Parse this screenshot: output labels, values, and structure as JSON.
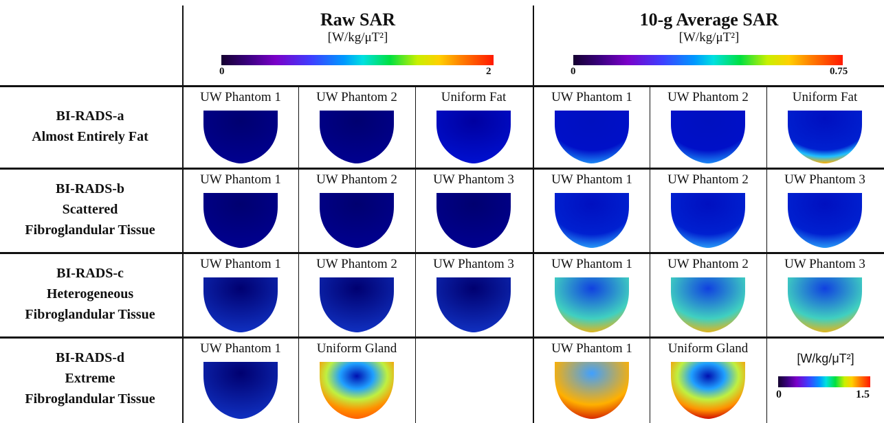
{
  "header": {
    "raw": {
      "title": "Raw SAR",
      "unit": "[W/kg/μT²]",
      "min": "0",
      "max": "2"
    },
    "avg": {
      "title": "10-g Average SAR",
      "unit": "[W/kg/μT²]",
      "min": "0",
      "max": "0.75"
    }
  },
  "rows": [
    {
      "line1": "BI-RADS-a",
      "line2": "Almost Entirely Fat",
      "line3": ""
    },
    {
      "line1": "BI-RADS-b",
      "line2": "Scattered",
      "line3": "Fibroglandular Tissue"
    },
    {
      "line1": "BI-RADS-c",
      "line2": "Heterogeneous",
      "line3": "Fibroglandular Tissue"
    },
    {
      "line1": "BI-RADS-d",
      "line2": "Extreme",
      "line3": "Fibroglandular Tissue"
    }
  ],
  "cells": [
    [
      "UW Phantom 1",
      "UW Phantom 2",
      "Uniform Fat",
      "UW Phantom 1",
      "UW Phantom 2",
      "Uniform Fat"
    ],
    [
      "UW Phantom 1",
      "UW Phantom 2",
      "UW Phantom 3",
      "UW Phantom 1",
      "UW Phantom 2",
      "UW Phantom 3"
    ],
    [
      "UW Phantom 1",
      "UW Phantom 2",
      "UW Phantom 3",
      "UW Phantom 1",
      "UW Phantom 2",
      "UW Phantom 3"
    ],
    [
      "UW Phantom 1",
      "Uniform Gland",
      "",
      "UW Phantom 1",
      "Uniform Gland",
      ""
    ]
  ],
  "inset_colorbar": {
    "unit": "[W/kg/μT²]",
    "min": "0",
    "max": "1.5"
  },
  "colors": {
    "background": "#000080",
    "low": "#0000d0",
    "mid": "#2aa0ff",
    "high": "#ffd000",
    "peak": "#ff2000"
  }
}
